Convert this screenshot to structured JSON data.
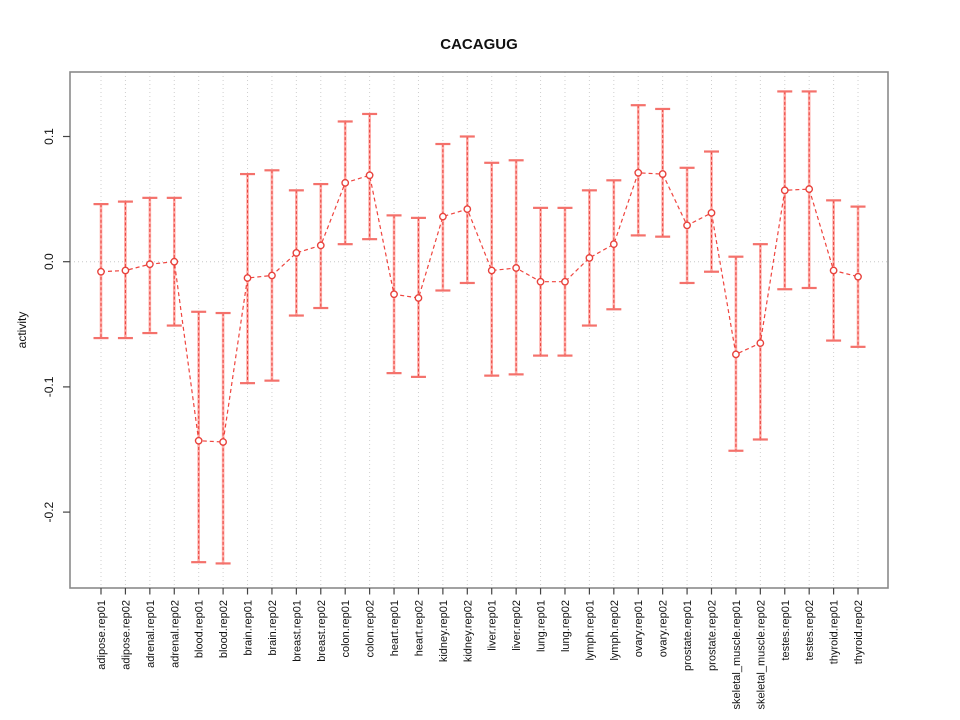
{
  "page": {
    "background": "#ffffff"
  },
  "chart_data": {
    "type": "line",
    "title": "CACAGUG",
    "xlabel": "",
    "ylabel": "activity",
    "legend": "none",
    "grid": "vertical dotted gridline at every category; dotted horizontal line at y=0",
    "marker": "open-circle",
    "line_style": "dashed",
    "error_bars": true,
    "ylim": [
      -0.26,
      0.152
    ],
    "y_ticks": [
      0.1,
      0.0,
      -0.1,
      -0.2
    ],
    "y_tick_labels": [
      "0.1",
      "0.0",
      "-0.1",
      "-0.2"
    ],
    "categories": [
      "adipose.rep01",
      "adipose.rep02",
      "adrenal.rep01",
      "adrenal.rep02",
      "blood.rep01",
      "blood.rep02",
      "brain.rep01",
      "brain.rep02",
      "breast.rep01",
      "breast.rep02",
      "colon.rep01",
      "colon.rep02",
      "heart.rep01",
      "heart.rep02",
      "kidney.rep01",
      "kidney.rep02",
      "liver.rep01",
      "liver.rep02",
      "lung.rep01",
      "lung.rep02",
      "lymph.rep01",
      "lymph.rep02",
      "ovary.rep01",
      "ovary.rep02",
      "prostate.rep01",
      "prostate.rep02",
      "skeletal_muscle.rep01",
      "skeletal_muscle.rep02",
      "testes.rep01",
      "testes.rep02",
      "thyroid.rep01",
      "thyroid.rep02"
    ],
    "series": [
      {
        "name": "activity",
        "values": [
          -0.008,
          -0.007,
          -0.002,
          0.0,
          -0.143,
          -0.144,
          -0.013,
          -0.011,
          0.007,
          0.013,
          0.063,
          0.069,
          -0.026,
          -0.029,
          0.036,
          0.042,
          -0.007,
          -0.005,
          -0.016,
          -0.016,
          0.003,
          0.014,
          0.071,
          0.07,
          0.029,
          0.039,
          -0.074,
          -0.065,
          0.057,
          0.058,
          -0.007,
          -0.012
        ],
        "error_low": [
          -0.061,
          -0.061,
          -0.057,
          -0.051,
          -0.24,
          -0.241,
          -0.097,
          -0.095,
          -0.043,
          -0.037,
          0.014,
          0.018,
          -0.089,
          -0.092,
          -0.023,
          -0.017,
          -0.091,
          -0.09,
          -0.075,
          -0.075,
          -0.051,
          -0.038,
          0.021,
          0.02,
          -0.017,
          -0.008,
          -0.151,
          -0.142,
          -0.022,
          -0.021,
          -0.063,
          -0.068
        ],
        "error_high": [
          0.046,
          0.048,
          0.051,
          0.051,
          -0.04,
          -0.041,
          0.07,
          0.073,
          0.057,
          0.062,
          0.112,
          0.118,
          0.037,
          0.035,
          0.094,
          0.1,
          0.079,
          0.081,
          0.043,
          0.043,
          0.057,
          0.065,
          0.125,
          0.122,
          0.075,
          0.088,
          0.004,
          0.014,
          0.136,
          0.136,
          0.049,
          0.044
        ]
      }
    ],
    "colors": {
      "marker_stroke": "#e8423c",
      "series_line": "#ef453f",
      "error_bar_light": "#ffaba6",
      "error_bar_dash": "#e8423c",
      "error_cap": "#f4716b",
      "gridline": "#cfcfcf",
      "zero_line": "#c8c8c8",
      "axis_box": "#8a8a8a",
      "tick": "#444444",
      "text": "#111111"
    }
  }
}
